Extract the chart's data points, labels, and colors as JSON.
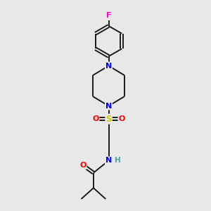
{
  "bg_color": "#e8e8e8",
  "atom_colors": {
    "F": "#ff00cc",
    "N": "#0000ff",
    "O": "#ff0000",
    "S": "#cccc00",
    "C": "#000000",
    "H": "#4da6a6"
  },
  "bond_color": "#1a1a1a",
  "line_width": 1.4
}
